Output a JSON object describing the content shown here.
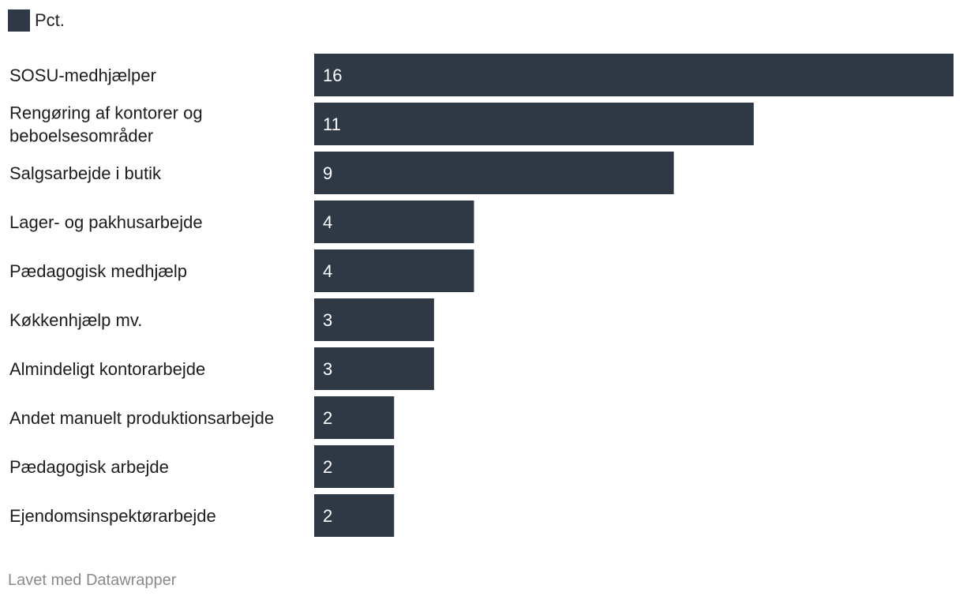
{
  "chart_data": {
    "type": "bar",
    "orientation": "horizontal",
    "legend": {
      "label": "Pct.",
      "position": "top-left"
    },
    "categories": [
      "SOSU-medhjælper",
      "Rengøring af kontorer og beboelsesområder",
      "Salgsarbejde i butik",
      "Lager- og pakhusarbejde",
      "Pædagogisk medhjælp",
      "Køkkenhjælp mv.",
      "Almindeligt kontorarbejde",
      "Andet manuelt produktionsarbejde",
      "Pædagogisk arbejde",
      "Ejendomsinspektørarbejde"
    ],
    "values": [
      16,
      11,
      9,
      4,
      4,
      3,
      3,
      2,
      2,
      2
    ],
    "xlim": [
      0,
      16
    ],
    "grid": false,
    "bar_color": "#2f3845"
  },
  "footer": {
    "credit": "Lavet med Datawrapper"
  }
}
